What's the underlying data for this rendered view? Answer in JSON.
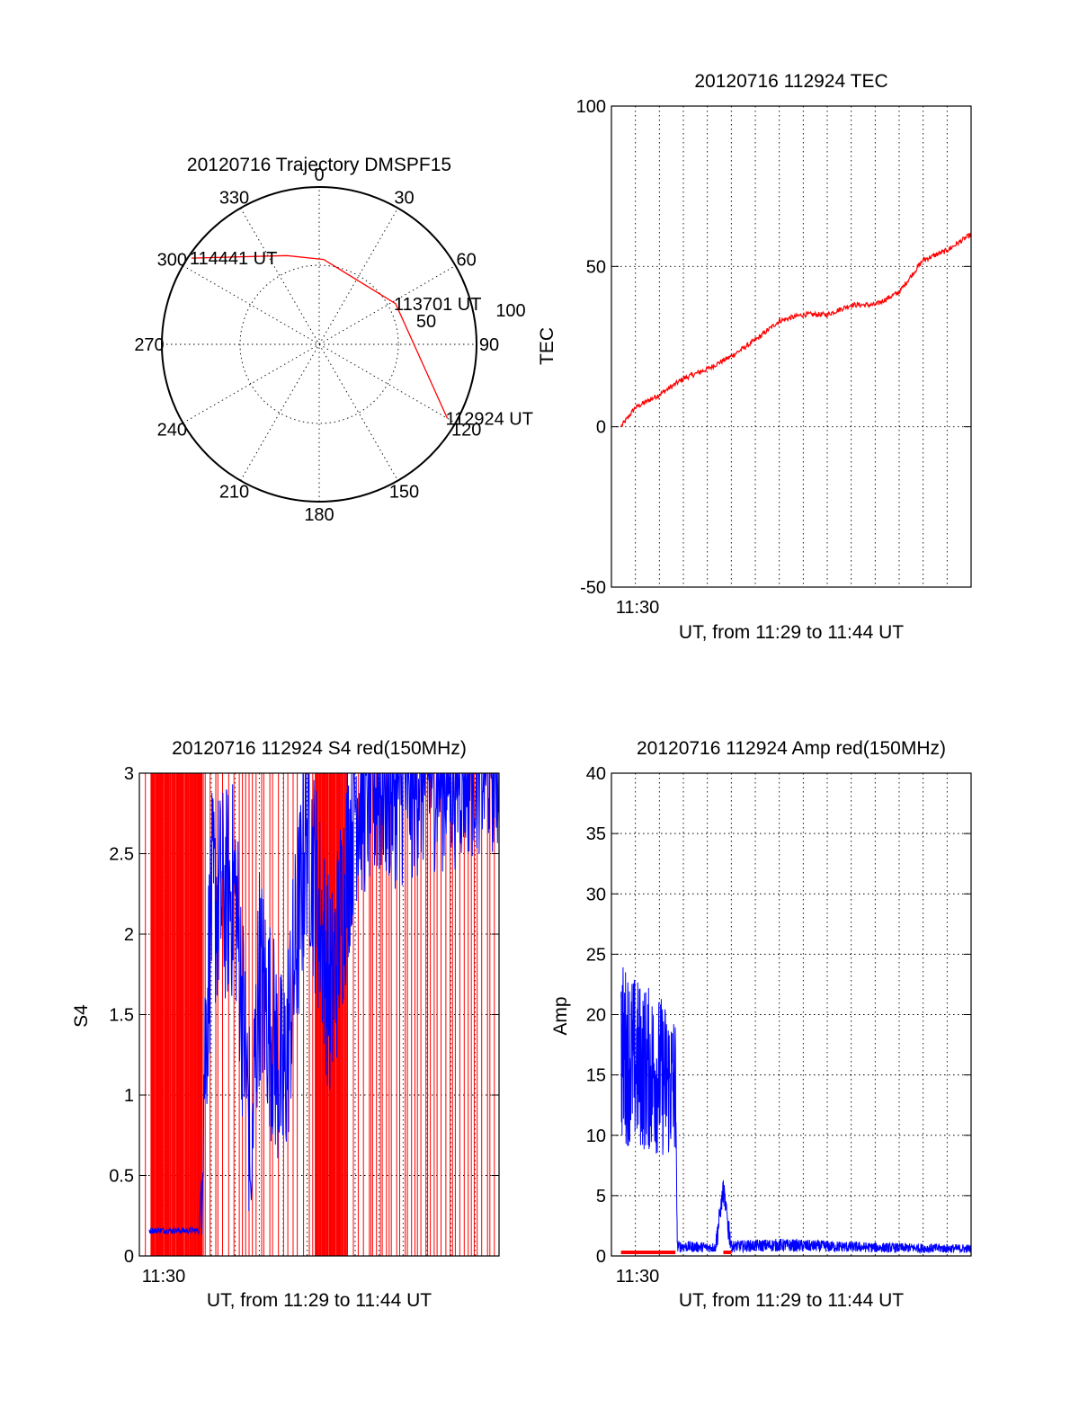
{
  "chart_data": [
    {
      "type": "polar",
      "title": "20120716 Trajectory DMSPF15",
      "azimuth_labels": [
        "0",
        "30",
        "60",
        "90",
        "120",
        "150",
        "180",
        "210",
        "240",
        "270",
        "300",
        "330"
      ],
      "radial_labels": [
        "50",
        "100"
      ],
      "radial_max": 100,
      "grid": true,
      "series": [
        {
          "color": "#ff0000",
          "points": [
            {
              "az": 304,
              "r": 98,
              "label": "114441 UT"
            },
            {
              "az": 340,
              "r": 60
            },
            {
              "az": 3,
              "r": 54
            },
            {
              "az": 62,
              "r": 55,
              "label": "113701 UT"
            },
            {
              "az": 120,
              "r": 94,
              "label": "112924 UT"
            }
          ]
        }
      ]
    },
    {
      "type": "line",
      "title": "20120716 112924 TEC",
      "ylabel": "TEC",
      "xlabel": "UT, from 11:29 to 11:44 UT",
      "xlim": [
        "11:29",
        "11:44"
      ],
      "ylim": [
        -50,
        100
      ],
      "yticks": [
        "-50",
        "0",
        "50",
        "100"
      ],
      "xticks": [
        "11:30"
      ],
      "grid": true,
      "series": [
        {
          "color": "#ff0000",
          "x": [
            "11:29:24",
            "11:30",
            "11:31",
            "11:32",
            "11:33",
            "11:34",
            "11:35",
            "11:36",
            "11:37",
            "11:38",
            "11:39",
            "11:40",
            "11:41",
            "11:42",
            "11:43",
            "11:44"
          ],
          "y": [
            0,
            6,
            10,
            15,
            18,
            22,
            27,
            33,
            35,
            35,
            38,
            38,
            42,
            52,
            55,
            60
          ]
        }
      ]
    },
    {
      "type": "line",
      "title": "20120716 112924 S4 red(150MHz)",
      "ylabel": "S4",
      "xlabel": "UT, from 11:29 to 11:44 UT",
      "xlim": [
        "11:29",
        "11:44"
      ],
      "ylim": [
        0,
        3
      ],
      "yticks": [
        "0",
        "0.5",
        "1",
        "1.5",
        "2",
        "2.5",
        "3"
      ],
      "xticks": [
        "11:30"
      ],
      "grid": true,
      "series": [
        {
          "color": "#ff0000",
          "description_free": true,
          "x": [
            "11:29:15",
            "11:44"
          ],
          "y": [
            0,
            3
          ]
        },
        {
          "color": "#0000ff",
          "x": [
            "11:29:24",
            "11:31:30",
            "11:32",
            "11:33",
            "11:33:40",
            "11:34",
            "11:35",
            "11:36",
            "11:37",
            "11:38",
            "11:39",
            "11:40",
            "11:41",
            "11:42",
            "11:43",
            "11:44"
          ],
          "y": [
            0.15,
            0.15,
            1.9,
            2.0,
            0.35,
            1.5,
            0.75,
            2.4,
            1.3,
            2.6,
            2.7,
            2.7,
            2.8,
            2.8,
            2.9,
            2.9
          ]
        }
      ]
    },
    {
      "type": "line",
      "title": "20120716 112924 Amp red(150MHz)",
      "ylabel": "Amp",
      "xlabel": "UT, from 11:29 to 11:44 UT",
      "xlim": [
        "11:29",
        "11:44"
      ],
      "ylim": [
        0,
        40
      ],
      "yticks": [
        "0",
        "5",
        "10",
        "15",
        "20",
        "25",
        "30",
        "35",
        "40"
      ],
      "xticks": [
        "11:30"
      ],
      "grid": true,
      "series": [
        {
          "color": "#0000ff",
          "x": [
            "11:29:24",
            "11:30",
            "11:31",
            "11:31:40",
            "11:31:45",
            "11:33:20",
            "11:33:40",
            "11:34",
            "11:36",
            "11:40",
            "11:44"
          ],
          "y": [
            17,
            16,
            15,
            14,
            0.8,
            0.7,
            5.5,
            0.8,
            0.9,
            0.7,
            0.6
          ]
        },
        {
          "color": "#ff0000",
          "x": [
            "11:29:24",
            "11:31:40",
            "11:33:40",
            "11:34"
          ],
          "y": [
            0.3,
            0.3,
            0.3,
            0.3
          ]
        }
      ]
    }
  ]
}
